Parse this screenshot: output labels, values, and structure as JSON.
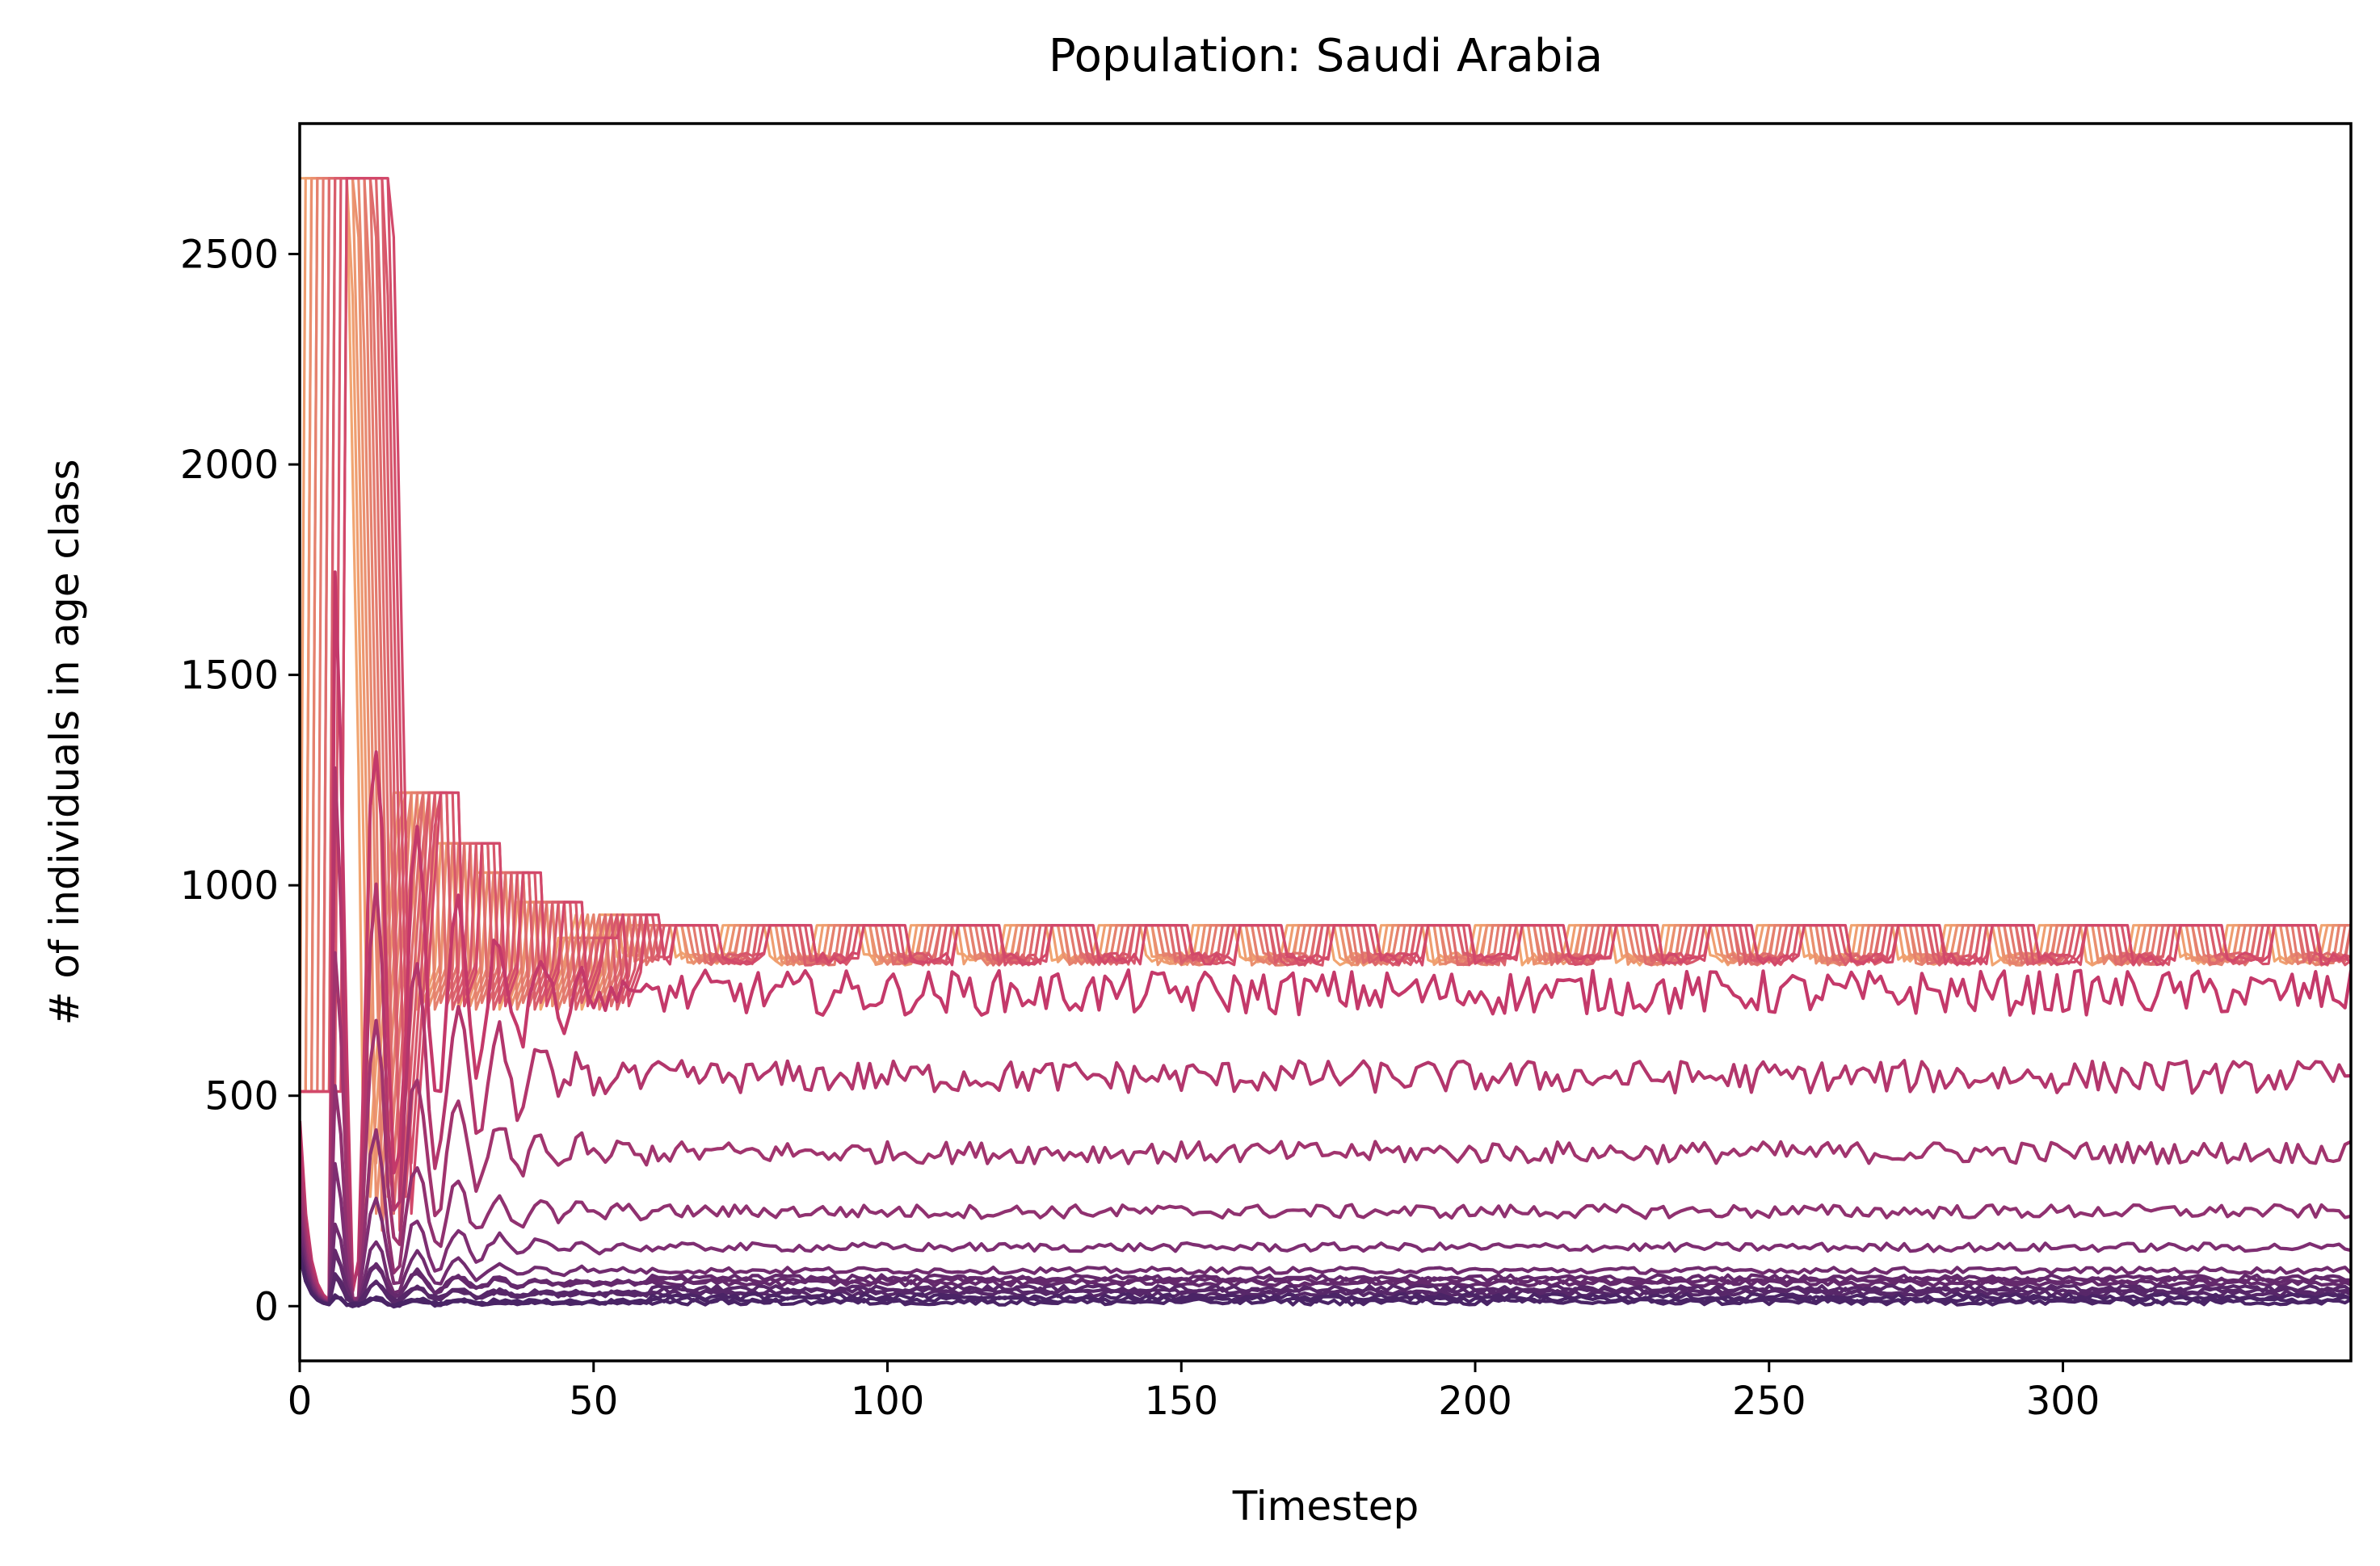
{
  "chart_data": {
    "type": "line",
    "title": "Population: Saudi Arabia",
    "xlabel": "Timestep",
    "ylabel": "# of individuals in age class",
    "xlim": [
      0,
      349
    ],
    "ylim": [
      -130,
      2810
    ],
    "xticks": [
      0,
      50,
      100,
      150,
      200,
      250,
      300
    ],
    "yticks": [
      0,
      500,
      1000,
      1500,
      2000,
      2500
    ],
    "grid": false,
    "legend": "none",
    "colormap": "flare",
    "colors": {
      "light": "#f1a571",
      "mid": "#d2486a",
      "dark_red": "#c4396a",
      "purple": "#7e2e72",
      "dark": "#4a2466"
    },
    "series_groups": [
      {
        "role": "youngest age classes (square-wave)",
        "start": 510,
        "peak": 2680,
        "peak_end_t": 8,
        "plateaus": [
          [
            16,
            1220
          ],
          [
            22,
            1100
          ],
          [
            30,
            1030
          ],
          [
            38,
            960
          ],
          [
            48,
            930
          ]
        ],
        "level": 875,
        "band": [
          810,
          905
        ]
      },
      {
        "role": "age class",
        "start": 440,
        "level": 745
      },
      {
        "role": "age class",
        "start": 380,
        "level": 545
      },
      {
        "role": "age class",
        "start": 320,
        "level": 365
      },
      {
        "role": "age class",
        "start": 260,
        "level": 225
      },
      {
        "role": "age class",
        "start": 220,
        "level": 140
      },
      {
        "role": "age class",
        "start": 190,
        "level": 85
      },
      {
        "role": "age class",
        "start": 160,
        "level": 55
      },
      {
        "role": "age class",
        "start": 140,
        "level": 30
      },
      {
        "role": "oldest age classes",
        "start": 120,
        "level": 10
      }
    ]
  }
}
